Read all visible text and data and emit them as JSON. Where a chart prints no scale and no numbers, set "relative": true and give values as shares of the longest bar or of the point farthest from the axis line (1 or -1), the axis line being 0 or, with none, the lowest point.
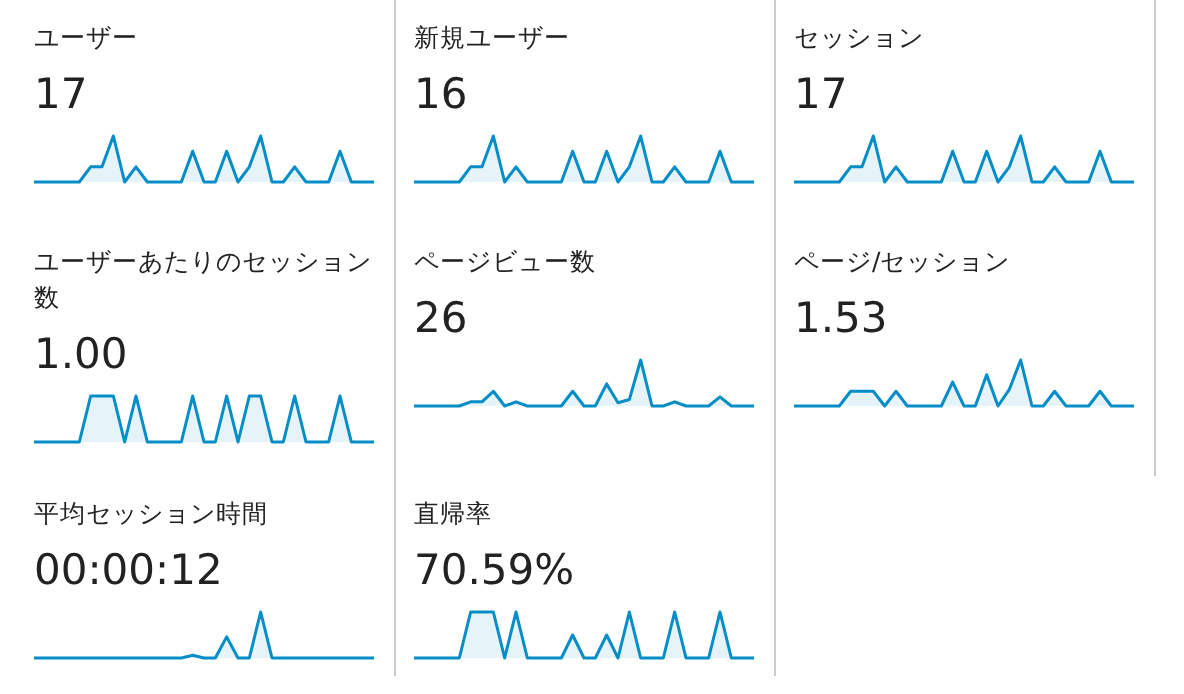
{
  "chart_data": [
    {
      "type": "area",
      "title": "ユーザー",
      "subtitle": "17",
      "relative": true,
      "color": "#058dc7",
      "categories": [
        null,
        null,
        null,
        null,
        null,
        null,
        null,
        null,
        null,
        null,
        null,
        null,
        null,
        null,
        null,
        null,
        null,
        null,
        null,
        null,
        null,
        null,
        null,
        null,
        null,
        null,
        null,
        null,
        null,
        null,
        null
      ],
      "values": [
        0,
        0,
        0,
        0,
        0,
        0.33,
        0.33,
        1,
        0,
        0.33,
        0,
        0,
        0,
        0,
        0.67,
        0,
        0,
        0.67,
        0,
        0.33,
        1,
        0,
        0,
        0.33,
        0,
        0,
        0,
        0.67,
        0,
        0,
        0
      ]
    },
    {
      "type": "area",
      "title": "新規ユーザー",
      "subtitle": "16",
      "relative": true,
      "color": "#058dc7",
      "categories": [
        null,
        null,
        null,
        null,
        null,
        null,
        null,
        null,
        null,
        null,
        null,
        null,
        null,
        null,
        null,
        null,
        null,
        null,
        null,
        null,
        null,
        null,
        null,
        null,
        null,
        null,
        null,
        null,
        null,
        null,
        null
      ],
      "values": [
        0,
        0,
        0,
        0,
        0,
        0.33,
        0.33,
        1,
        0,
        0.33,
        0,
        0,
        0,
        0,
        0.67,
        0,
        0,
        0.67,
        0,
        0.33,
        1,
        0,
        0,
        0.33,
        0,
        0,
        0,
        0.67,
        0,
        0,
        0
      ]
    },
    {
      "type": "area",
      "title": "セッション",
      "subtitle": "17",
      "relative": true,
      "color": "#058dc7",
      "categories": [
        null,
        null,
        null,
        null,
        null,
        null,
        null,
        null,
        null,
        null,
        null,
        null,
        null,
        null,
        null,
        null,
        null,
        null,
        null,
        null,
        null,
        null,
        null,
        null,
        null,
        null,
        null,
        null,
        null,
        null,
        null
      ],
      "values": [
        0,
        0,
        0,
        0,
        0,
        0.33,
        0.33,
        1,
        0,
        0.33,
        0,
        0,
        0,
        0,
        0.67,
        0,
        0,
        0.67,
        0,
        0.33,
        1,
        0,
        0,
        0.33,
        0,
        0,
        0,
        0.67,
        0,
        0,
        0
      ]
    },
    {
      "type": "area",
      "title": "ユーザーあたりのセッション数",
      "subtitle": "1.00",
      "relative": true,
      "color": "#058dc7",
      "categories": [
        null,
        null,
        null,
        null,
        null,
        null,
        null,
        null,
        null,
        null,
        null,
        null,
        null,
        null,
        null,
        null,
        null,
        null,
        null,
        null,
        null,
        null,
        null,
        null,
        null,
        null,
        null,
        null,
        null,
        null,
        null
      ],
      "values": [
        0,
        0,
        0,
        0,
        0,
        1,
        1,
        1,
        0,
        1,
        0,
        0,
        0,
        0,
        1,
        0,
        0,
        1,
        0,
        1,
        1,
        0,
        0,
        1,
        0,
        0,
        0,
        1,
        0,
        0,
        0
      ]
    },
    {
      "type": "area",
      "title": "ページビュー数",
      "subtitle": "26",
      "relative": true,
      "color": "#058dc7",
      "categories": [
        null,
        null,
        null,
        null,
        null,
        null,
        null,
        null,
        null,
        null,
        null,
        null,
        null,
        null,
        null,
        null,
        null,
        null,
        null,
        null,
        null,
        null,
        null,
        null,
        null,
        null,
        null,
        null,
        null,
        null,
        null
      ],
      "values": [
        0,
        0,
        0,
        0,
        0,
        0.09,
        0.09,
        0.32,
        0,
        0.09,
        0,
        0,
        0,
        0,
        0.32,
        0,
        0,
        0.48,
        0.07,
        0.14,
        1,
        0,
        0,
        0.09,
        0,
        0,
        0,
        0.2,
        0,
        0,
        0
      ]
    },
    {
      "type": "area",
      "title": "ページ/セッション",
      "subtitle": "1.53",
      "relative": true,
      "color": "#058dc7",
      "categories": [
        null,
        null,
        null,
        null,
        null,
        null,
        null,
        null,
        null,
        null,
        null,
        null,
        null,
        null,
        null,
        null,
        null,
        null,
        null,
        null,
        null,
        null,
        null,
        null,
        null,
        null,
        null,
        null,
        null,
        null,
        null
      ],
      "values": [
        0,
        0,
        0,
        0,
        0,
        0.32,
        0.32,
        0.32,
        0,
        0.32,
        0,
        0,
        0,
        0,
        0.52,
        0,
        0,
        0.68,
        0,
        0.36,
        1,
        0,
        0,
        0.32,
        0,
        0,
        0,
        0.32,
        0,
        0,
        0
      ]
    },
    {
      "type": "area",
      "title": "平均セッション時間",
      "subtitle": "00:00:12",
      "relative": true,
      "color": "#058dc7",
      "categories": [
        null,
        null,
        null,
        null,
        null,
        null,
        null,
        null,
        null,
        null,
        null,
        null,
        null,
        null,
        null,
        null,
        null,
        null,
        null,
        null,
        null,
        null,
        null,
        null,
        null,
        null,
        null,
        null,
        null,
        null,
        null
      ],
      "values": [
        0,
        0,
        0,
        0,
        0,
        0,
        0,
        0,
        0,
        0,
        0,
        0,
        0,
        0,
        0.06,
        0,
        0,
        0.46,
        0,
        0,
        1,
        0,
        0,
        0,
        0,
        0,
        0,
        0,
        0,
        0,
        0
      ]
    },
    {
      "type": "area",
      "title": "直帰率",
      "subtitle": "70.59%",
      "relative": true,
      "color": "#058dc7",
      "categories": [
        null,
        null,
        null,
        null,
        null,
        null,
        null,
        null,
        null,
        null,
        null,
        null,
        null,
        null,
        null,
        null,
        null,
        null,
        null,
        null,
        null,
        null,
        null,
        null,
        null,
        null,
        null,
        null,
        null,
        null,
        null
      ],
      "values": [
        0,
        0,
        0,
        0,
        0,
        1,
        1,
        1,
        0,
        1,
        0,
        0,
        0,
        0,
        0.5,
        0,
        0,
        0.5,
        0,
        1,
        0,
        0,
        0,
        1,
        0,
        0,
        0,
        1,
        0,
        0,
        0
      ]
    }
  ]
}
